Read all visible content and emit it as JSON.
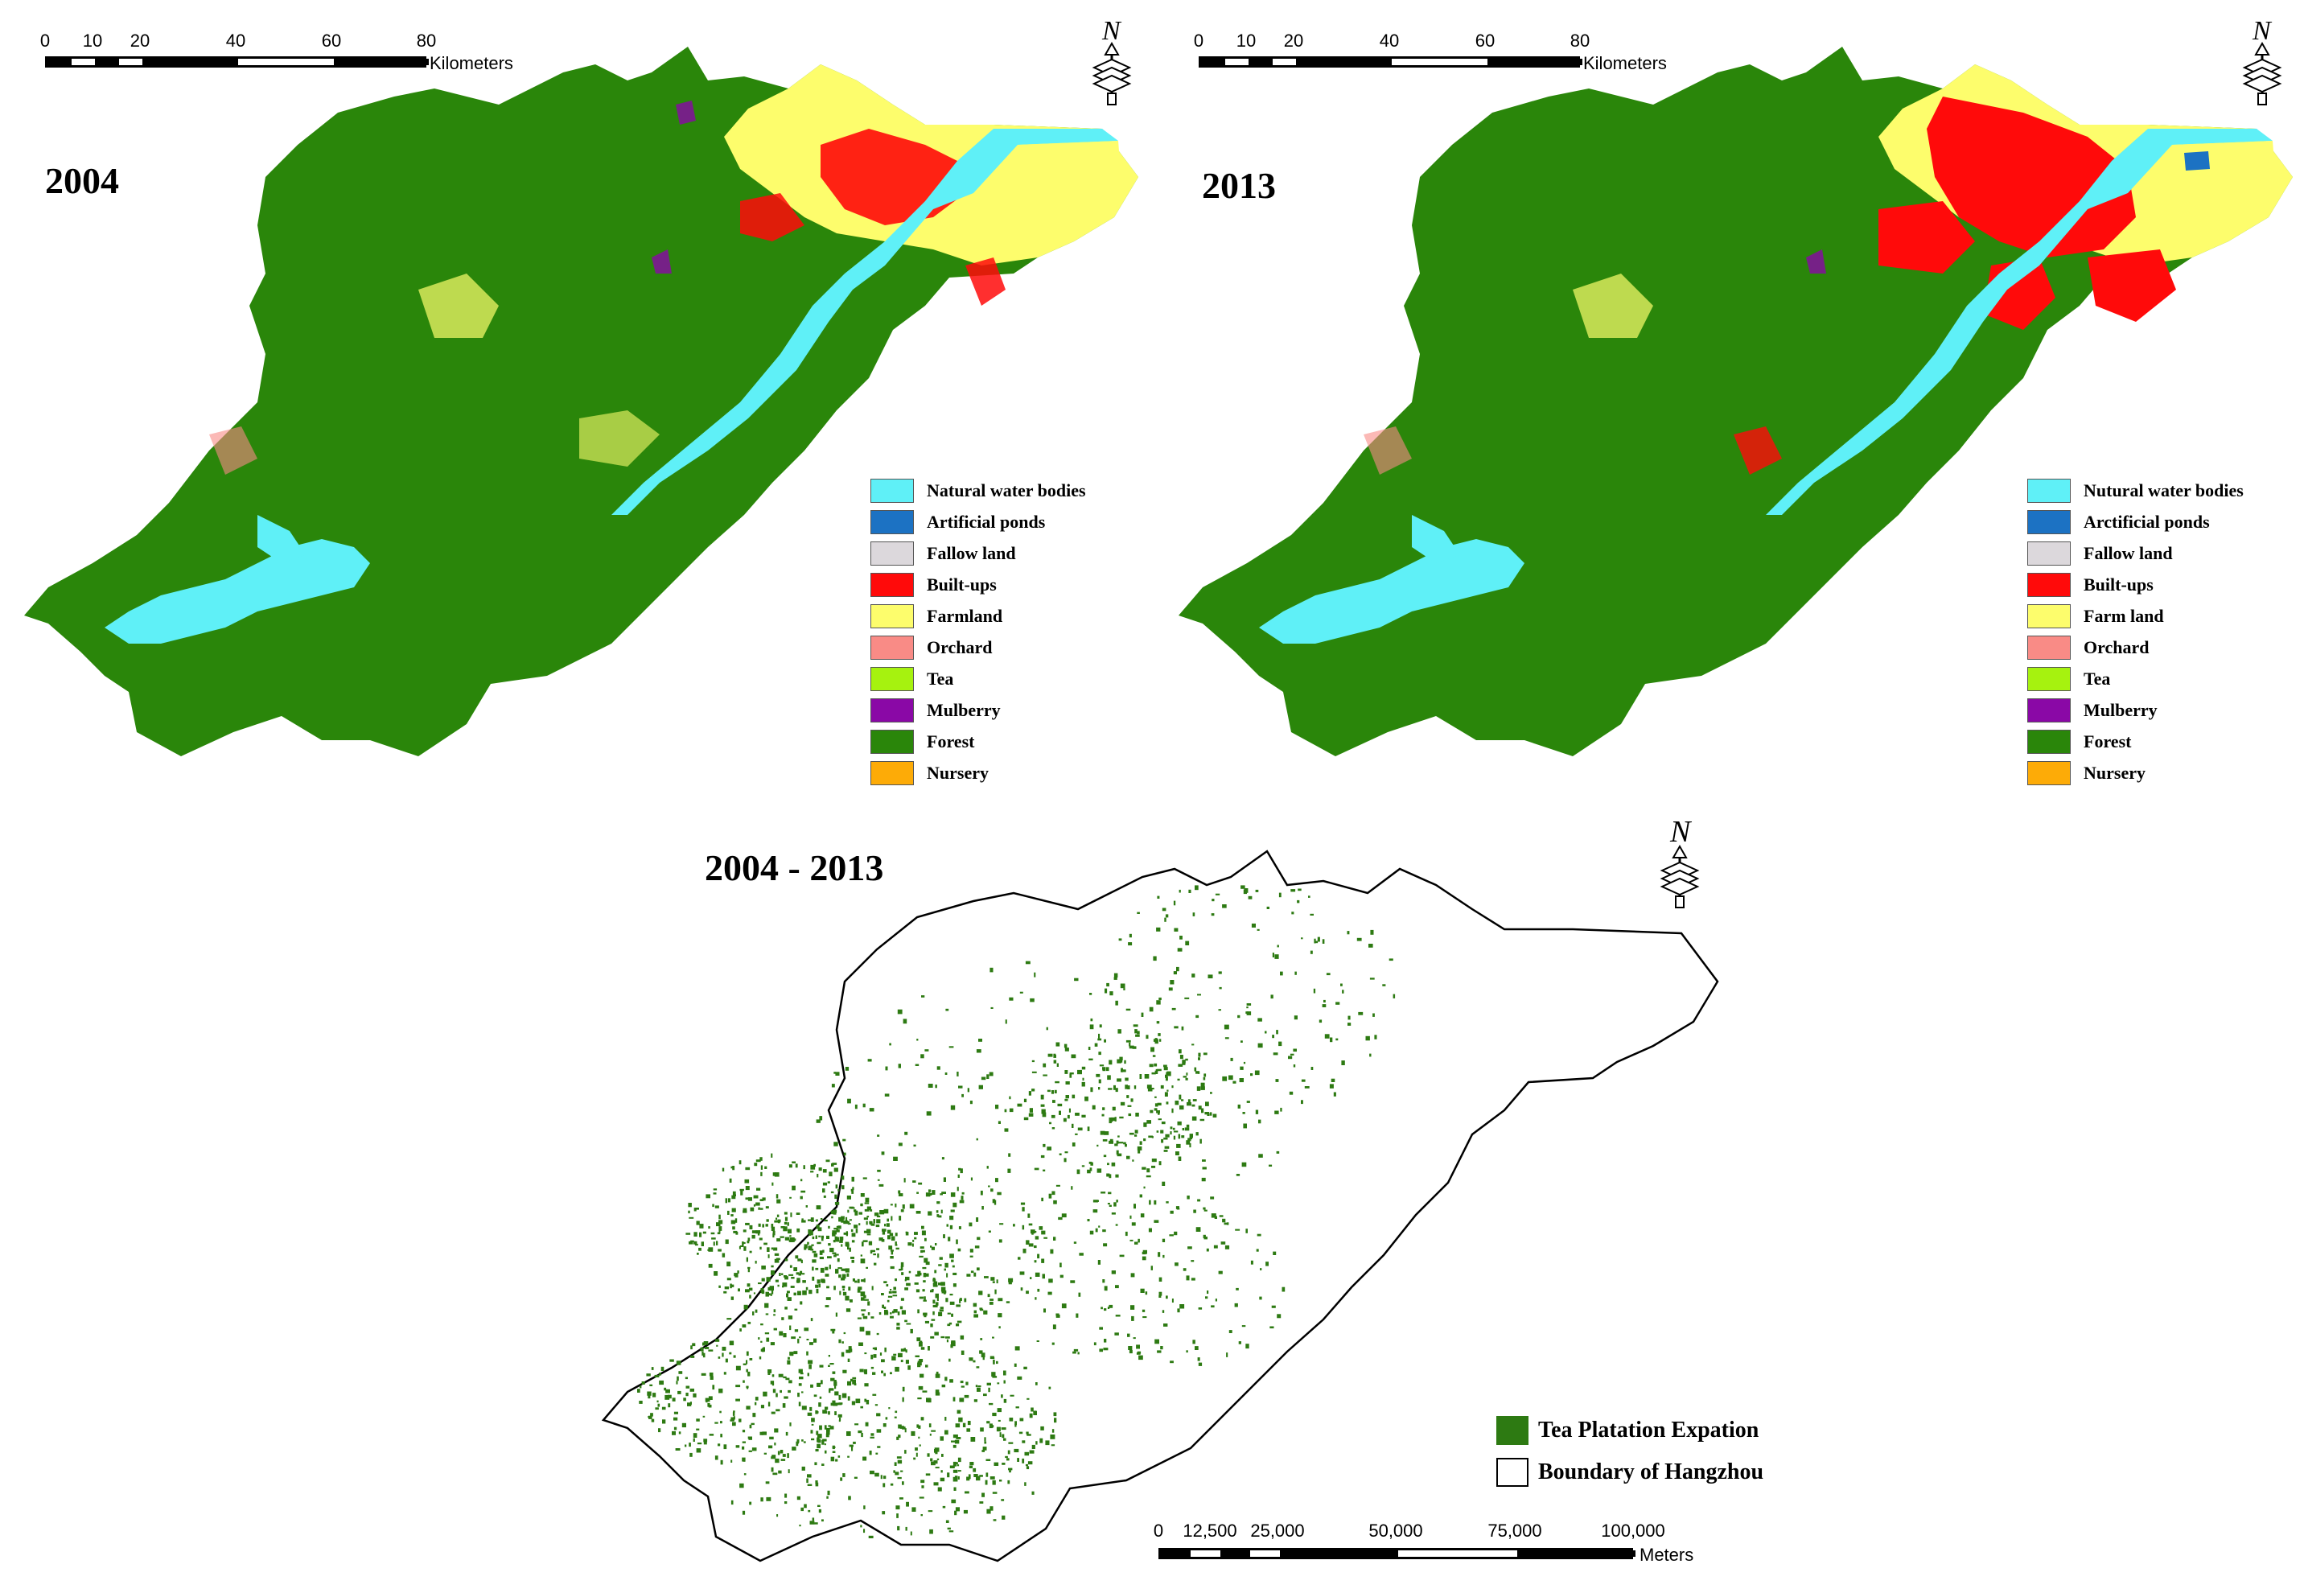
{
  "maps": [
    {
      "year_label": "2004",
      "scale": {
        "ticks": [
          "0",
          "10",
          "20",
          "40",
          "60",
          "80"
        ],
        "unit": "Kilometers"
      },
      "north_label": "N",
      "legend": [
        {
          "label": "Natural water bodies",
          "color": "#5ff0f7"
        },
        {
          "label": "Artificial ponds",
          "color": "#1c72c3"
        },
        {
          "label": "Fallow land",
          "color": "#dcd8dc"
        },
        {
          "label": "Built-ups",
          "color": "#ff0a0a"
        },
        {
          "label": "Farmland",
          "color": "#fdfd6c"
        },
        {
          "label": "Orchard",
          "color": "#f98b86"
        },
        {
          "label": "Tea",
          "color": "#a6f20f"
        },
        {
          "label": "Mulberry",
          "color": "#8a08a6"
        },
        {
          "label": "Forest",
          "color": "#2a860a"
        },
        {
          "label": "Nursery",
          "color": "#fdab07"
        }
      ]
    },
    {
      "year_label": "2013",
      "scale": {
        "ticks": [
          "0",
          "10",
          "20",
          "40",
          "60",
          "80"
        ],
        "unit": "Kilometers"
      },
      "north_label": "N",
      "legend": [
        {
          "label": "Nutural water bodies",
          "color": "#5ff0f7"
        },
        {
          "label": "Arctificial ponds",
          "color": "#1c72c3"
        },
        {
          "label": "Fallow land",
          "color": "#dcd8dc"
        },
        {
          "label": "Built-ups",
          "color": "#ff0a0a"
        },
        {
          "label": "Farm land",
          "color": "#fdfd6c"
        },
        {
          "label": "Orchard",
          "color": "#f98b86"
        },
        {
          "label": "Tea",
          "color": "#a6f20f"
        },
        {
          "label": "Mulberry",
          "color": "#8a08a6"
        },
        {
          "label": "Forest",
          "color": "#2a860a"
        },
        {
          "label": "Nursery",
          "color": "#fdab07"
        }
      ]
    }
  ],
  "change_map": {
    "period_label": "2004 - 2013",
    "north_label": "N",
    "legend": [
      {
        "label": "Tea Platation Expation",
        "color": "#2d7a12"
      },
      {
        "label": "Boundary of Hangzhou",
        "color": "#ffffff"
      }
    ],
    "scale": {
      "ticks": [
        "0",
        "12,500",
        "25,000",
        "50,000",
        "75,000",
        "100,000"
      ],
      "unit": "Meters"
    }
  }
}
